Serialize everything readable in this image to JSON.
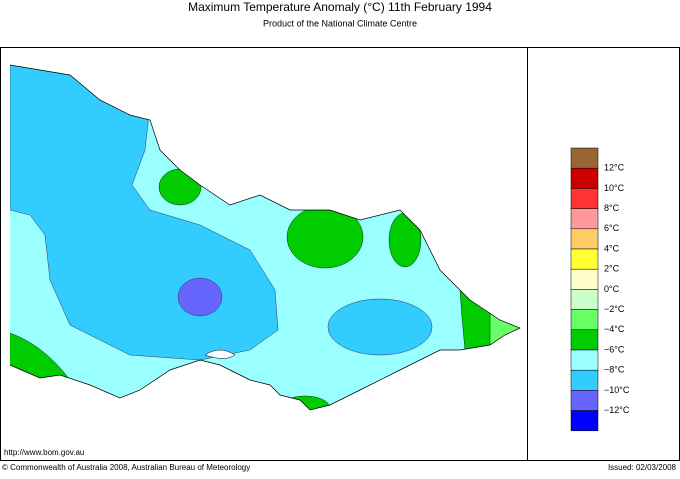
{
  "header": {
    "title": "Maximum Temperature Anomaly (°C)  11th February 1994",
    "subtitle": "Product of the National Climate Centre"
  },
  "legend": {
    "colors": [
      "#996633",
      "#cc0000",
      "#ff3333",
      "#ff9999",
      "#ffcc66",
      "#ffff33",
      "#ffffcc",
      "#ccffcc",
      "#66ff66",
      "#00cc00",
      "#99ffff",
      "#33ccff",
      "#6666ff",
      "#0000ff"
    ],
    "labels": [
      "12°C",
      "10°C",
      "8°C",
      "6°C",
      "4°C",
      "2°C",
      "0°C",
      "−2°C",
      "−4°C",
      "−6°C",
      "−8°C",
      "−10°C",
      "−12°C"
    ]
  },
  "footer": {
    "url": "http://www.bom.gov.au",
    "copyright": "© Commonwealth of Australia 2008, Australian Bureau of Meteorology",
    "issued": "Issued: 02/03/2008"
  }
}
